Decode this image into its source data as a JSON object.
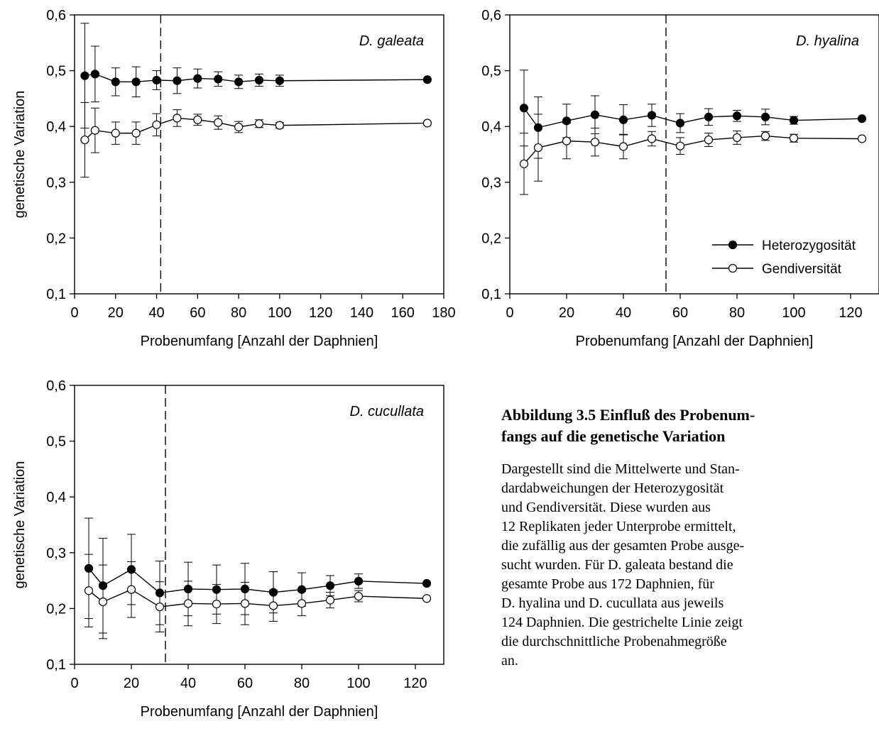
{
  "chart_data": [
    {
      "type": "line",
      "annotation": "D. galeata",
      "xlabel": "Probenumfang [Anzahl der Daphnien]",
      "ylabel": "genetische Variation",
      "xlim": [
        0,
        180
      ],
      "ylim": [
        0.1,
        0.6
      ],
      "xticks": [
        "0",
        "20",
        "40",
        "60",
        "80",
        "100",
        "120",
        "140",
        "160",
        "180"
      ],
      "yticks": [
        "0,1",
        "0,2",
        "0,3",
        "0,4",
        "0,5",
        "0,6"
      ],
      "vline_x": 42,
      "grid": false,
      "series": [
        {
          "name": "Heterozygosität",
          "marker": "filled",
          "x": [
            5,
            10,
            20,
            30,
            40,
            50,
            60,
            70,
            80,
            90,
            100,
            172
          ],
          "y": [
            0.491,
            0.494,
            0.48,
            0.48,
            0.483,
            0.482,
            0.486,
            0.485,
            0.48,
            0.483,
            0.482,
            0.484
          ],
          "err": [
            0.094,
            0.05,
            0.025,
            0.027,
            0.017,
            0.023,
            0.017,
            0.013,
            0.012,
            0.011,
            0.01,
            0
          ]
        },
        {
          "name": "Gendiversität",
          "marker": "open",
          "x": [
            5,
            10,
            20,
            30,
            40,
            50,
            60,
            70,
            80,
            90,
            100,
            172
          ],
          "y": [
            0.376,
            0.393,
            0.388,
            0.388,
            0.403,
            0.415,
            0.412,
            0.407,
            0.399,
            0.405,
            0.402,
            0.406
          ],
          "err": [
            0.067,
            0.04,
            0.02,
            0.02,
            0.02,
            0.015,
            0.01,
            0.012,
            0.01,
            0.007,
            0.005,
            0
          ]
        }
      ]
    },
    {
      "type": "line",
      "annotation": "D. hyalina",
      "xlabel": "Probenumfang [Anzahl der Daphnien]",
      "ylabel": "",
      "xlim": [
        0,
        130
      ],
      "ylim": [
        0.1,
        0.6
      ],
      "xticks": [
        "0",
        "20",
        "40",
        "60",
        "80",
        "100",
        "120"
      ],
      "yticks": [
        "0,1",
        "0,2",
        "0,3",
        "0,4",
        "0,5",
        "0,6"
      ],
      "vline_x": 55,
      "grid": false,
      "legend": "bottom-right",
      "series": [
        {
          "name": "Heterozygosität",
          "marker": "filled",
          "x": [
            5,
            10,
            20,
            30,
            40,
            50,
            60,
            70,
            80,
            90,
            100,
            124
          ],
          "y": [
            0.433,
            0.398,
            0.41,
            0.421,
            0.412,
            0.42,
            0.406,
            0.417,
            0.419,
            0.417,
            0.411,
            0.414
          ],
          "err": [
            0.068,
            0.055,
            0.03,
            0.034,
            0.027,
            0.02,
            0.017,
            0.015,
            0.01,
            0.014,
            0.007,
            0
          ]
        },
        {
          "name": "Gendiversität",
          "marker": "open",
          "x": [
            5,
            10,
            20,
            30,
            40,
            50,
            60,
            70,
            80,
            90,
            100,
            124
          ],
          "y": [
            0.333,
            0.362,
            0.374,
            0.372,
            0.364,
            0.378,
            0.365,
            0.376,
            0.38,
            0.383,
            0.379,
            0.378
          ],
          "err": [
            0.055,
            0.06,
            0.032,
            0.025,
            0.022,
            0.013,
            0.015,
            0.012,
            0.012,
            0.008,
            0.007,
            0
          ]
        }
      ]
    },
    {
      "type": "line",
      "annotation": "D. cucullata",
      "xlabel": "Probenumfang [Anzahl der Daphnien]",
      "ylabel": "genetische Variation",
      "xlim": [
        0,
        130
      ],
      "ylim": [
        0.1,
        0.6
      ],
      "xticks": [
        "0",
        "20",
        "40",
        "60",
        "80",
        "100",
        "120"
      ],
      "yticks": [
        "0,1",
        "0,2",
        "0,3",
        "0,4",
        "0,5",
        "0,6"
      ],
      "vline_x": 32,
      "grid": false,
      "series": [
        {
          "name": "Heterozygosität",
          "marker": "filled",
          "x": [
            5,
            10,
            20,
            30,
            40,
            50,
            60,
            70,
            80,
            90,
            100,
            124
          ],
          "y": [
            0.272,
            0.241,
            0.27,
            0.228,
            0.235,
            0.234,
            0.235,
            0.229,
            0.234,
            0.241,
            0.249,
            0.245
          ],
          "err": [
            0.09,
            0.085,
            0.063,
            0.057,
            0.048,
            0.044,
            0.046,
            0.037,
            0.03,
            0.018,
            0.013,
            0
          ]
        },
        {
          "name": "Gendiversität",
          "marker": "open",
          "x": [
            5,
            10,
            20,
            30,
            40,
            50,
            60,
            70,
            80,
            90,
            100,
            124
          ],
          "y": [
            0.232,
            0.212,
            0.234,
            0.203,
            0.209,
            0.208,
            0.209,
            0.205,
            0.209,
            0.215,
            0.222,
            0.218
          ],
          "err": [
            0.065,
            0.066,
            0.05,
            0.045,
            0.04,
            0.035,
            0.038,
            0.028,
            0.022,
            0.014,
            0.01,
            0
          ]
        }
      ]
    }
  ],
  "caption": {
    "title": "Abbildung 3.5 Einfluß des Probenum- fangs auf die genetische Variation",
    "title_lines": [
      "Abbildung 3.5 Einfluß des Probenum-",
      "fangs auf die genetische Variation"
    ],
    "body_lines": [
      "Dargestellt sind die Mittelwerte und Stan-",
      "dardabweichungen der Heterozygosität",
      "und Gendiversität. Diese wurden aus",
      "12 Replikaten jeder Unterprobe ermittelt,",
      "die zufällig aus der gesamten Probe ausge-",
      "sucht wurden. Für D. galeata bestand die",
      "gesamte Probe aus 172  Daphnien, für",
      "D. hyalina und D. cucullata aus jeweils",
      "124 Daphnien. Die gestrichelte Linie zeigt",
      "die durchschnittliche Probenahmegröße",
      "an."
    ]
  }
}
